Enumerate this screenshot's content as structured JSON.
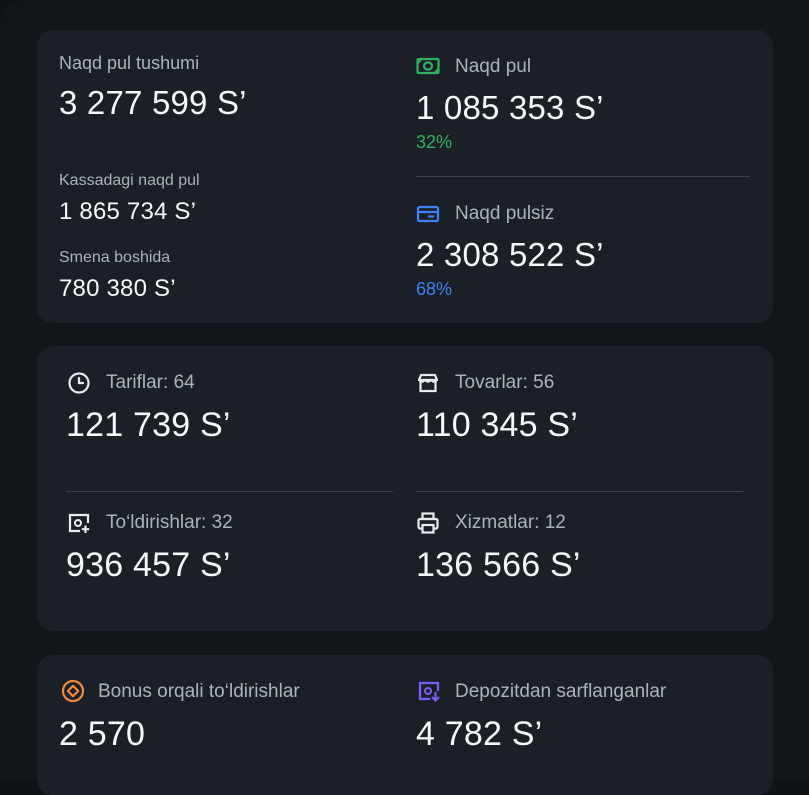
{
  "summary": {
    "cash_income_label": "Naqd pul tushumi",
    "cash_income_value": "3 277 599 S’",
    "cash_in_register_label": "Kassadagi naqd pul",
    "cash_in_register_value": "1 865 734 S’",
    "shift_start_label": "Smena boshida",
    "shift_start_value": "780 380 S’",
    "cash": {
      "label": "Naqd pul",
      "value": "1 085 353 S’",
      "percent": "32%",
      "color": "#2fb35f",
      "icon": "cash-icon"
    },
    "cashless": {
      "label": "Naqd pulsiz",
      "value": "2 308 522 S’",
      "percent": "68%",
      "color": "#3b82f6",
      "icon": "card-icon"
    }
  },
  "categories": {
    "tariffs": {
      "label": "Tariflar: 64",
      "value": "121 739 S’",
      "icon": "clock-icon"
    },
    "goods": {
      "label": "Tovarlar: 56",
      "value": "110 345 S’",
      "icon": "store-icon"
    },
    "topups": {
      "label": "To‘ldirishlar: 32",
      "value": "936 457 S’",
      "icon": "topup-icon"
    },
    "services": {
      "label": "Xizmatlar: 12",
      "value": "136 566 S’",
      "icon": "printer-icon"
    }
  },
  "extras": {
    "bonus": {
      "label": "Bonus orqali to‘ldirishlar",
      "value": "2 570",
      "color": "#f08a3c",
      "icon": "bonus-icon"
    },
    "deposit": {
      "label": "Depozitdan sarflanganlar",
      "value": "4 782 S’",
      "color": "#7c5cf6",
      "icon": "deposit-icon"
    }
  }
}
